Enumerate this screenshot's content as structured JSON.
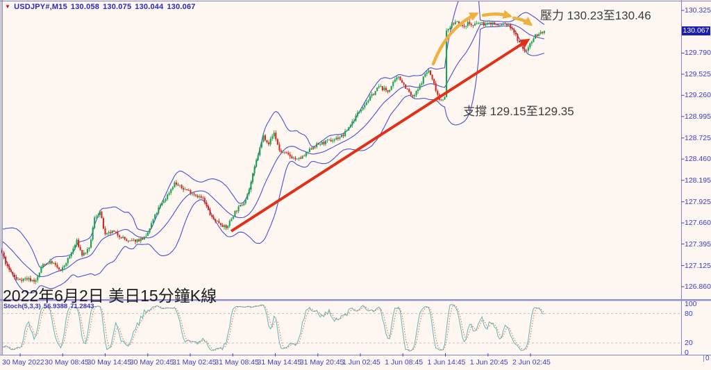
{
  "header": {
    "dropdown_icon": "▼",
    "symbol": "USDJPY#,M15",
    "open": "130.058",
    "high": "130.075",
    "low": "130.044",
    "close": "130.067"
  },
  "annotations": {
    "resistance": "壓力 130.23至130.46",
    "support": "支撐 129.15至129.35",
    "caption": "2022年6月2日 美日15分鐘K線"
  },
  "price_axis": {
    "current_price": "130.067",
    "ticks": [
      "130.325",
      "129.790",
      "129.525",
      "129.260",
      "128.995",
      "128.725",
      "128.460",
      "128.195",
      "127.925",
      "127.660",
      "127.395",
      "127.125",
      "126.860"
    ]
  },
  "time_axis": {
    "labels": [
      "30 May 2022",
      "30 May 08:45",
      "30 May 14:45",
      "30 May 20:45",
      "31 May 02:45",
      "31 May 08:45",
      "31 May 14:45",
      "31 May 20:45",
      "1 Jun 02:45",
      "1 Jun 08:45",
      "1 Jun 14:45",
      "1 Jun 20:45",
      "2 Jun 02:45"
    ],
    "corner_zero": "0"
  },
  "stoch_panel": {
    "label": "Stoch(5,3,3)",
    "k_value": "56.9388",
    "d_value": "71.2843",
    "levels": [
      "100",
      "80",
      "20",
      "0"
    ],
    "dashed_levels": [
      80,
      20
    ]
  },
  "colors": {
    "bull": "#1ca24c",
    "bear": "#d4281c",
    "bollinger": "#4850d0",
    "stoch_k": "#58b8b0",
    "stoch_d": "#e0685c",
    "trend_arrow": "#e03018",
    "impulse_arrow": "#eeb03e",
    "axis_text": "#3c3cc8",
    "badge_bg": "#1c1cb8",
    "border": "#8080cc",
    "level_dash": "#c9bfbf"
  },
  "chart_data": {
    "type": "candlestick",
    "title": "USDJPY# M15 candlestick chart with Bollinger Bands(20,2), Stochastic(5,3,3), support/resistance annotations",
    "symbol": "USDJPY#",
    "timeframe": "M15",
    "last_ohlc": {
      "open": 130.058,
      "high": 130.075,
      "low": 130.044,
      "close": 130.067
    },
    "y_axis": {
      "ticks": [
        130.325,
        129.79,
        129.525,
        129.26,
        128.995,
        128.725,
        128.46,
        128.195,
        127.925,
        127.66,
        127.395,
        127.125,
        126.86
      ],
      "top_price": 130.325,
      "bottom_price": 126.86
    },
    "bars_visible": 306,
    "price_path_anchors": [
      [
        0,
        127.28
      ],
      [
        3,
        127.1
      ],
      [
        8,
        126.95
      ],
      [
        14,
        126.96
      ],
      [
        19,
        126.93
      ],
      [
        23,
        127.14
      ],
      [
        28,
        127.17
      ],
      [
        33,
        127.05
      ],
      [
        38,
        127.24
      ],
      [
        42,
        127.43
      ],
      [
        45,
        127.26
      ],
      [
        49,
        127.33
      ],
      [
        52,
        127.72
      ],
      [
        55,
        127.8
      ],
      [
        58,
        127.5
      ],
      [
        62,
        127.55
      ],
      [
        67,
        127.49
      ],
      [
        71,
        127.42
      ],
      [
        77,
        127.45
      ],
      [
        81,
        127.48
      ],
      [
        85,
        127.7
      ],
      [
        88,
        127.84
      ],
      [
        92,
        127.97
      ],
      [
        97,
        128.16
      ],
      [
        101,
        128.1
      ],
      [
        106,
        128.05
      ],
      [
        113,
        127.96
      ],
      [
        118,
        127.72
      ],
      [
        123,
        127.65
      ],
      [
        126,
        127.59
      ],
      [
        131,
        127.8
      ],
      [
        136,
        127.92
      ],
      [
        139,
        128.08
      ],
      [
        143,
        128.44
      ],
      [
        147,
        128.75
      ],
      [
        150,
        128.66
      ],
      [
        153,
        128.79
      ],
      [
        156,
        128.57
      ],
      [
        161,
        128.51
      ],
      [
        166,
        128.45
      ],
      [
        170,
        128.5
      ],
      [
        175,
        128.62
      ],
      [
        180,
        128.66
      ],
      [
        186,
        128.7
      ],
      [
        192,
        128.76
      ],
      [
        198,
        128.96
      ],
      [
        202,
        129.1
      ],
      [
        207,
        129.23
      ],
      [
        212,
        129.37
      ],
      [
        217,
        129.31
      ],
      [
        221,
        129.44
      ],
      [
        223,
        129.5
      ],
      [
        227,
        129.36
      ],
      [
        231,
        129.23
      ],
      [
        234,
        129.33
      ],
      [
        238,
        129.53
      ],
      [
        240,
        129.57
      ],
      [
        243,
        129.4
      ],
      [
        246,
        129.21
      ],
      [
        249,
        129.23
      ],
      [
        250,
        130.06
      ],
      [
        252,
        130.12
      ],
      [
        256,
        130.2
      ],
      [
        259,
        130.11
      ],
      [
        262,
        130.17
      ],
      [
        265,
        130.13
      ],
      [
        268,
        130.17
      ],
      [
        272,
        130.15
      ],
      [
        276,
        130.17
      ],
      [
        279,
        130.13
      ],
      [
        283,
        130.16
      ],
      [
        287,
        130.1
      ],
      [
        290,
        129.96
      ],
      [
        292,
        129.86
      ],
      [
        295,
        129.81
      ],
      [
        297,
        129.92
      ],
      [
        300,
        130.01
      ],
      [
        302,
        130.03
      ],
      [
        305,
        130.067
      ]
    ],
    "pre_history_anchors": [
      [
        -20,
        127.56
      ],
      [
        -10,
        127.44
      ],
      [
        -1,
        127.31
      ]
    ],
    "indicators": [
      {
        "name": "Bollinger Bands",
        "period": 20,
        "deviation": 2
      },
      {
        "name": "Stochastic",
        "k": 5,
        "d": 3,
        "slowing": 3,
        "current_k": 56.9388,
        "current_d": 71.2843
      }
    ],
    "overlays": {
      "support_zone": [
        129.15,
        129.35
      ],
      "resistance_zone": [
        130.23,
        130.46
      ],
      "trend_arrow": {
        "from": [
          333,
          333
        ],
        "to": [
          760,
          58
        ]
      },
      "impulse_arrows": [
        [
          [
            624,
            92
          ],
          [
            644,
            40
          ],
          [
            686,
            20
          ]
        ],
        [
          [
            696,
            22
          ],
          [
            715,
            18
          ],
          [
            734,
            23
          ]
        ],
        [
          [
            740,
            26
          ],
          [
            755,
            28
          ],
          [
            764,
            35
          ]
        ]
      ]
    }
  }
}
